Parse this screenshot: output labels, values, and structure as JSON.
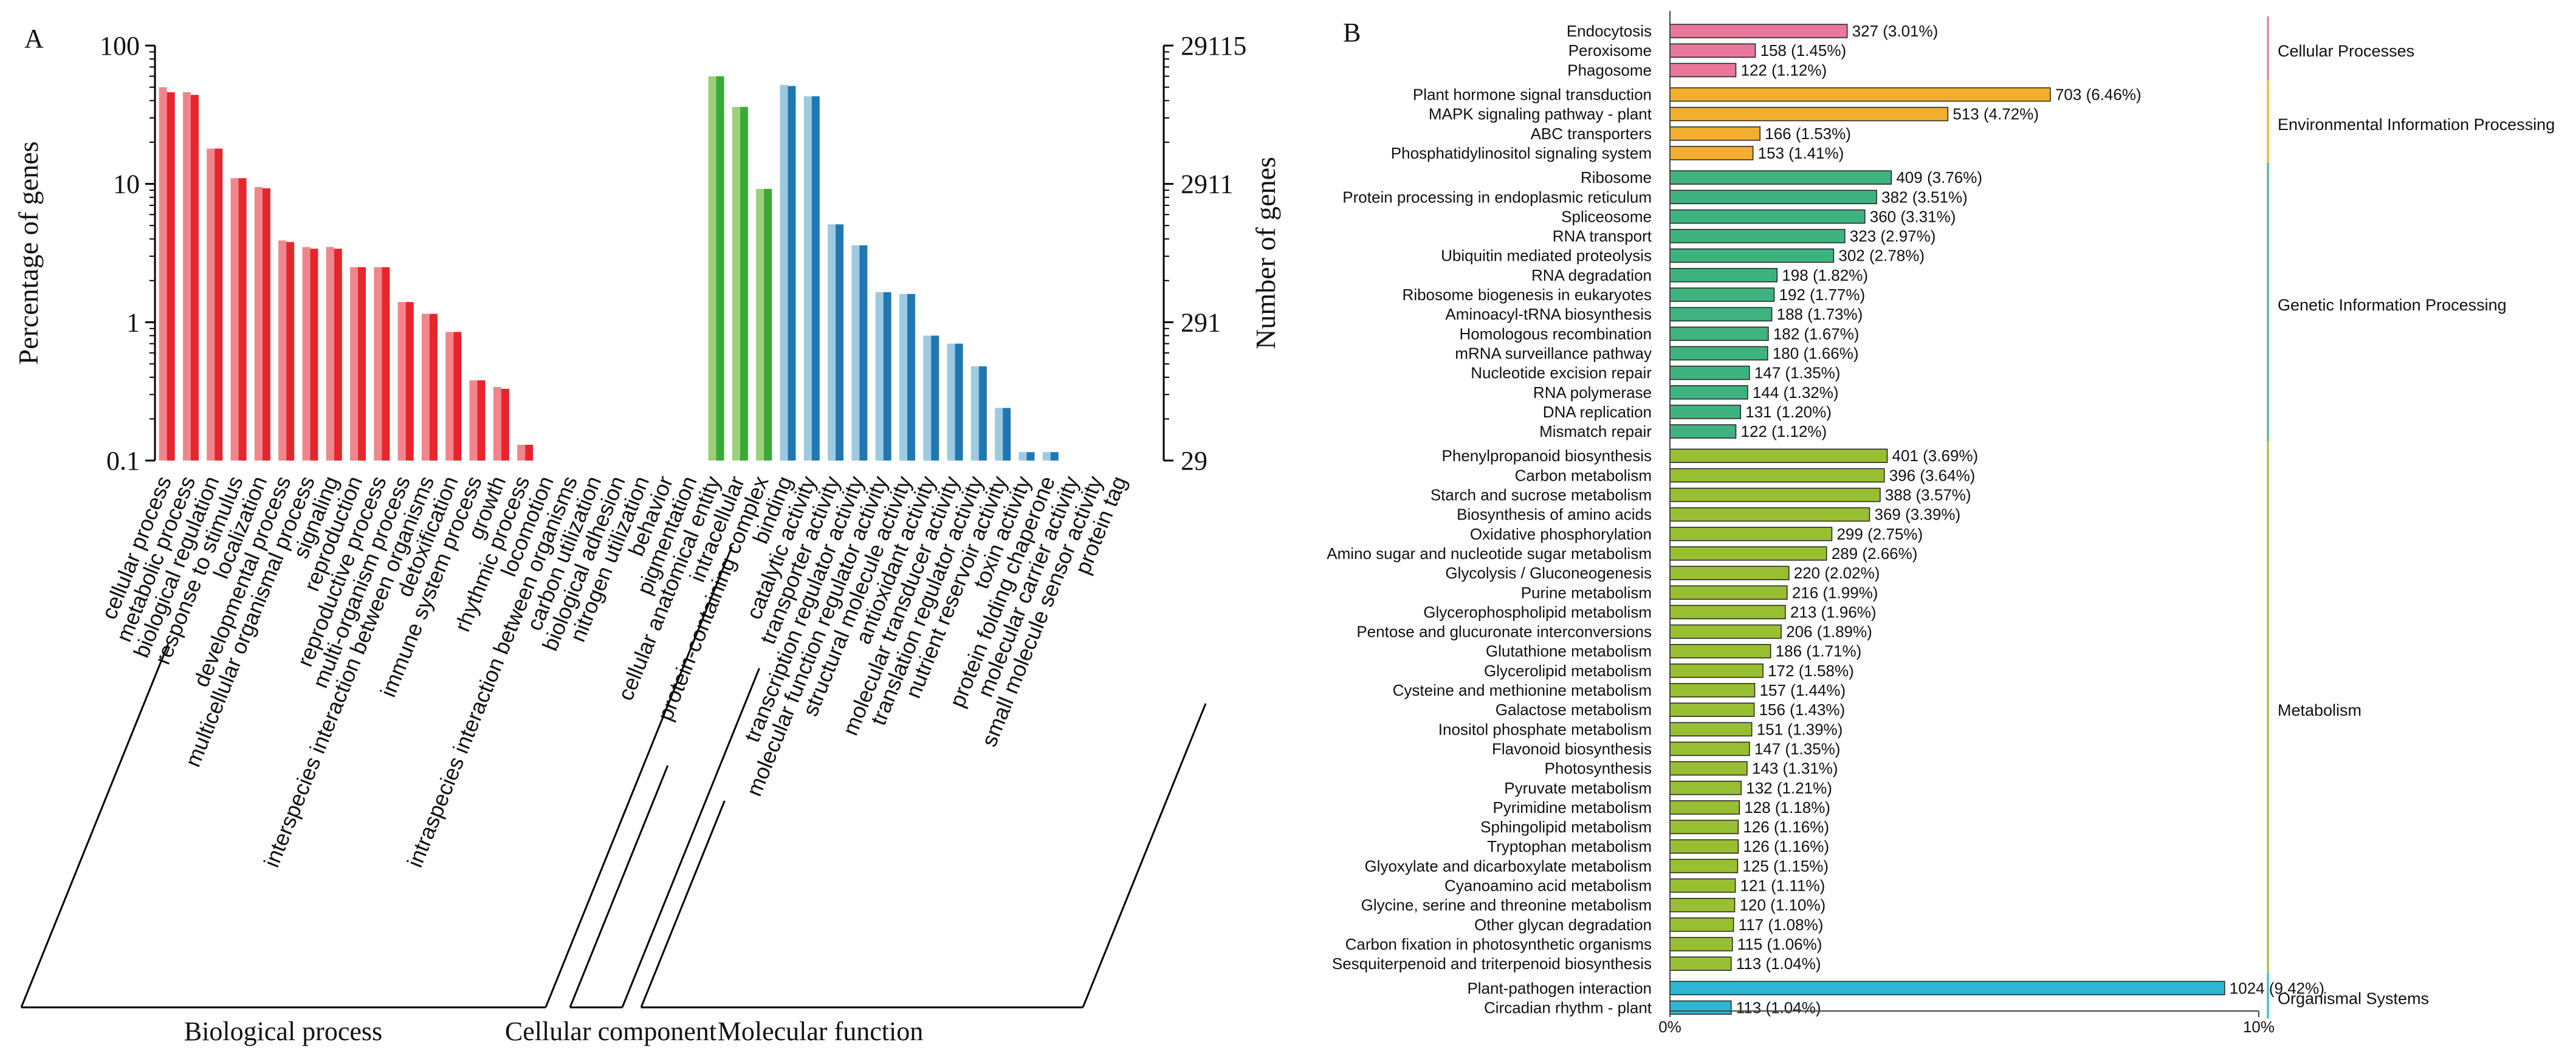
{
  "panel_a_label": "A",
  "panel_b_label": "B",
  "chart_data": [
    {
      "type": "bar",
      "panel": "A",
      "ylabel": "Percentage of genes",
      "y2label": "Number of genes",
      "yscale": "log",
      "ylim": [
        0.1,
        100
      ],
      "yticks": [
        "100",
        "10",
        "1",
        "0.1"
      ],
      "y2ticks": [
        "29115",
        "2911",
        "291",
        "29"
      ],
      "series_shades": [
        "light",
        "dark"
      ],
      "groups": [
        {
          "name": "Biological process",
          "color_dark": "#e8242d",
          "color_light": "#f0868b",
          "categories": [
            {
              "name": "cellular process",
              "light": 50,
              "dark": 46
            },
            {
              "name": "metabolic process",
              "light": 46,
              "dark": 44
            },
            {
              "name": "biological regulation",
              "light": 18,
              "dark": 18
            },
            {
              "name": "response to stimulus",
              "light": 11,
              "dark": 11
            },
            {
              "name": "localization",
              "light": 9.5,
              "dark": 9.3
            },
            {
              "name": "developmental process",
              "light": 3.9,
              "dark": 3.8
            },
            {
              "name": "multicellular organismal process",
              "light": 3.5,
              "dark": 3.4
            },
            {
              "name": "signaling",
              "light": 3.5,
              "dark": 3.4
            },
            {
              "name": "reproduction",
              "light": 2.5,
              "dark": 2.5
            },
            {
              "name": "reproductive process",
              "light": 2.5,
              "dark": 2.5
            },
            {
              "name": "multi-organism process",
              "light": 1.4,
              "dark": 1.4
            },
            {
              "name": "interspecies interaction between organisms",
              "light": 1.15,
              "dark": 1.15
            },
            {
              "name": "detoxification",
              "light": 0.85,
              "dark": 0.85
            },
            {
              "name": "immune system process",
              "light": 0.38,
              "dark": 0.38
            },
            {
              "name": "growth",
              "light": 0.34,
              "dark": 0.33
            },
            {
              "name": "rhythmic process",
              "light": 0.13,
              "dark": 0.13
            },
            {
              "name": "locomotion",
              "light": 0,
              "dark": 0
            },
            {
              "name": "intraspecies interaction between organisms",
              "light": 0,
              "dark": 0
            },
            {
              "name": "carbon utilization",
              "light": 0,
              "dark": 0
            },
            {
              "name": "biological adhesion",
              "light": 0,
              "dark": 0
            },
            {
              "name": "nitrogen utilization",
              "light": 0,
              "dark": 0
            },
            {
              "name": "behavior",
              "light": 0,
              "dark": 0
            }
          ]
        },
        {
          "name": "Cellular component",
          "color_dark": "#3aa935",
          "color_light": "#9bd07a",
          "categories": [
            {
              "name": "pigmentation",
              "light": 0,
              "dark": 0
            },
            {
              "name": "cellular anatomical entity",
              "light": 60,
              "dark": 60
            },
            {
              "name": "intracellular",
              "light": 36,
              "dark": 36
            },
            {
              "name": "protein-containing complex",
              "light": 9.2,
              "dark": 9.2
            }
          ]
        },
        {
          "name": "Molecular function",
          "color_dark": "#1f78b4",
          "color_light": "#9ecae1",
          "categories": [
            {
              "name": "binding",
              "light": 52,
              "dark": 51
            },
            {
              "name": "catalytic activity",
              "light": 43,
              "dark": 43
            },
            {
              "name": "transporter activity",
              "light": 5.1,
              "dark": 5.1
            },
            {
              "name": "transcription regulator activity",
              "light": 3.6,
              "dark": 3.6
            },
            {
              "name": "molecular function regulator activity",
              "light": 1.65,
              "dark": 1.65
            },
            {
              "name": "structural molecule activity",
              "light": 1.6,
              "dark": 1.6
            },
            {
              "name": "antioxidant activity",
              "light": 0.8,
              "dark": 0.8
            },
            {
              "name": "molecular transducer activity",
              "light": 0.7,
              "dark": 0.7
            },
            {
              "name": "translation regulator activity",
              "light": 0.48,
              "dark": 0.48
            },
            {
              "name": "nutrient reservoir activity",
              "light": 0.24,
              "dark": 0.24
            },
            {
              "name": "toxin activity",
              "light": 0.115,
              "dark": 0.115
            },
            {
              "name": "protein folding chaperone",
              "light": 0.115,
              "dark": 0.115
            },
            {
              "name": "molecular carrier activity",
              "light": 0,
              "dark": 0
            },
            {
              "name": "small molecule sensor activity",
              "light": 0,
              "dark": 0
            },
            {
              "name": "protein tag",
              "light": 0,
              "dark": 0
            }
          ]
        }
      ]
    },
    {
      "type": "bar",
      "panel": "B",
      "orientation": "horizontal",
      "xlim": [
        0,
        10
      ],
      "xticks": [
        "0%",
        "10%"
      ],
      "classes": [
        {
          "name": "Cellular Processes",
          "color": "#e8779b",
          "pathways": [
            {
              "name": "Endocytosis",
              "count": 327,
              "pct": 3.01,
              "label": "327 (3.01%)"
            },
            {
              "name": "Peroxisome",
              "count": 158,
              "pct": 1.45,
              "label": "158 (1.45%)"
            },
            {
              "name": "Phagosome",
              "count": 122,
              "pct": 1.12,
              "label": "122 (1.12%)"
            }
          ]
        },
        {
          "name": "Environmental Information Processing",
          "color": "#f2ae2c",
          "pathways": [
            {
              "name": "Plant hormone signal transduction",
              "count": 703,
              "pct": 6.46,
              "label": "703 (6.46%)"
            },
            {
              "name": "MAPK signaling pathway - plant",
              "count": 513,
              "pct": 4.72,
              "label": "513 (4.72%)"
            },
            {
              "name": "ABC transporters",
              "count": 166,
              "pct": 1.53,
              "label": "166 (1.53%)"
            },
            {
              "name": "Phosphatidylinositol signaling system",
              "count": 153,
              "pct": 1.41,
              "label": "153 (1.41%)"
            }
          ]
        },
        {
          "name": "Genetic Information Processing",
          "color": "#3fb37f",
          "pathways": [
            {
              "name": "Ribosome",
              "count": 409,
              "pct": 3.76,
              "label": "409 (3.76%)"
            },
            {
              "name": "Protein processing in endoplasmic reticulum",
              "count": 382,
              "pct": 3.51,
              "label": "382 (3.51%)"
            },
            {
              "name": "Spliceosome",
              "count": 360,
              "pct": 3.31,
              "label": "360 (3.31%)"
            },
            {
              "name": "RNA transport",
              "count": 323,
              "pct": 2.97,
              "label": "323 (2.97%)"
            },
            {
              "name": "Ubiquitin mediated proteolysis",
              "count": 302,
              "pct": 2.78,
              "label": "302 (2.78%)"
            },
            {
              "name": "RNA degradation",
              "count": 198,
              "pct": 1.82,
              "label": "198 (1.82%)"
            },
            {
              "name": "Ribosome biogenesis in eukaryotes",
              "count": 192,
              "pct": 1.77,
              "label": "192 (1.77%)"
            },
            {
              "name": "Aminoacyl-tRNA biosynthesis",
              "count": 188,
              "pct": 1.73,
              "label": "188 (1.73%)"
            },
            {
              "name": "Homologous recombination",
              "count": 182,
              "pct": 1.67,
              "label": "182 (1.67%)"
            },
            {
              "name": "mRNA surveillance pathway",
              "count": 180,
              "pct": 1.66,
              "label": "180 (1.66%)"
            },
            {
              "name": "Nucleotide excision repair",
              "count": 147,
              "pct": 1.35,
              "label": "147 (1.35%)"
            },
            {
              "name": "RNA polymerase",
              "count": 144,
              "pct": 1.32,
              "label": "144 (1.32%)"
            },
            {
              "name": "DNA replication",
              "count": 131,
              "pct": 1.2,
              "label": "131 (1.20%)"
            },
            {
              "name": "Mismatch repair",
              "count": 122,
              "pct": 1.12,
              "label": "122 (1.12%)"
            }
          ]
        },
        {
          "name": "Metabolism",
          "color": "#98bf32",
          "pathways": [
            {
              "name": "Phenylpropanoid biosynthesis",
              "count": 401,
              "pct": 3.69,
              "label": "401 (3.69%)"
            },
            {
              "name": "Carbon metabolism",
              "count": 396,
              "pct": 3.64,
              "label": "396 (3.64%)"
            },
            {
              "name": "Starch and sucrose metabolism",
              "count": 388,
              "pct": 3.57,
              "label": "388 (3.57%)"
            },
            {
              "name": "Biosynthesis of amino acids",
              "count": 369,
              "pct": 3.39,
              "label": "369 (3.39%)"
            },
            {
              "name": "Oxidative phosphorylation",
              "count": 299,
              "pct": 2.75,
              "label": "299 (2.75%)"
            },
            {
              "name": "Amino sugar and nucleotide sugar metabolism",
              "count": 289,
              "pct": 2.66,
              "label": "289 (2.66%)"
            },
            {
              "name": "Glycolysis / Gluconeogenesis",
              "count": 220,
              "pct": 2.02,
              "label": "220 (2.02%)"
            },
            {
              "name": "Purine metabolism",
              "count": 216,
              "pct": 1.99,
              "label": "216 (1.99%)"
            },
            {
              "name": "Glycerophospholipid metabolism",
              "count": 213,
              "pct": 1.96,
              "label": "213 (1.96%)"
            },
            {
              "name": "Pentose and glucuronate interconversions",
              "count": 206,
              "pct": 1.89,
              "label": "206 (1.89%)"
            },
            {
              "name": "Glutathione metabolism",
              "count": 186,
              "pct": 1.71,
              "label": "186 (1.71%)"
            },
            {
              "name": "Glycerolipid metabolism",
              "count": 172,
              "pct": 1.58,
              "label": "172 (1.58%)"
            },
            {
              "name": "Cysteine and methionine metabolism",
              "count": 157,
              "pct": 1.44,
              "label": "157 (1.44%)"
            },
            {
              "name": "Galactose metabolism",
              "count": 156,
              "pct": 1.43,
              "label": "156 (1.43%)"
            },
            {
              "name": "Inositol phosphate metabolism",
              "count": 151,
              "pct": 1.39,
              "label": "151 (1.39%)"
            },
            {
              "name": "Flavonoid biosynthesis",
              "count": 147,
              "pct": 1.35,
              "label": "147 (1.35%)"
            },
            {
              "name": "Photosynthesis",
              "count": 143,
              "pct": 1.31,
              "label": "143 (1.31%)"
            },
            {
              "name": "Pyruvate metabolism",
              "count": 132,
              "pct": 1.21,
              "label": "132 (1.21%)"
            },
            {
              "name": "Pyrimidine metabolism",
              "count": 128,
              "pct": 1.18,
              "label": "128 (1.18%)"
            },
            {
              "name": "Sphingolipid metabolism",
              "count": 126,
              "pct": 1.16,
              "label": "126 (1.16%)"
            },
            {
              "name": "Tryptophan metabolism",
              "count": 126,
              "pct": 1.16,
              "label": "126 (1.16%)"
            },
            {
              "name": "Glyoxylate and dicarboxylate metabolism",
              "count": 125,
              "pct": 1.15,
              "label": "125 (1.15%)"
            },
            {
              "name": "Cyanoamino acid metabolism",
              "count": 121,
              "pct": 1.11,
              "label": "121 (1.11%)"
            },
            {
              "name": "Glycine, serine and threonine metabolism",
              "count": 120,
              "pct": 1.1,
              "label": "120 (1.10%)"
            },
            {
              "name": "Other glycan degradation",
              "count": 117,
              "pct": 1.08,
              "label": "117 (1.08%)"
            },
            {
              "name": "Carbon fixation in photosynthetic organisms",
              "count": 115,
              "pct": 1.06,
              "label": "115 (1.06%)"
            },
            {
              "name": "Sesquiterpenoid and triterpenoid biosynthesis",
              "count": 113,
              "pct": 1.04,
              "label": "113 (1.04%)"
            }
          ]
        },
        {
          "name": "Organismal Systems",
          "color": "#2bb7d2",
          "pathways": [
            {
              "name": "Plant-pathogen interaction",
              "count": 1024,
              "pct": 9.42,
              "label": "1024 (9.42%)"
            },
            {
              "name": "Circadian rhythm - plant",
              "count": 113,
              "pct": 1.04,
              "label": "113 (1.04%)"
            }
          ]
        }
      ]
    }
  ]
}
